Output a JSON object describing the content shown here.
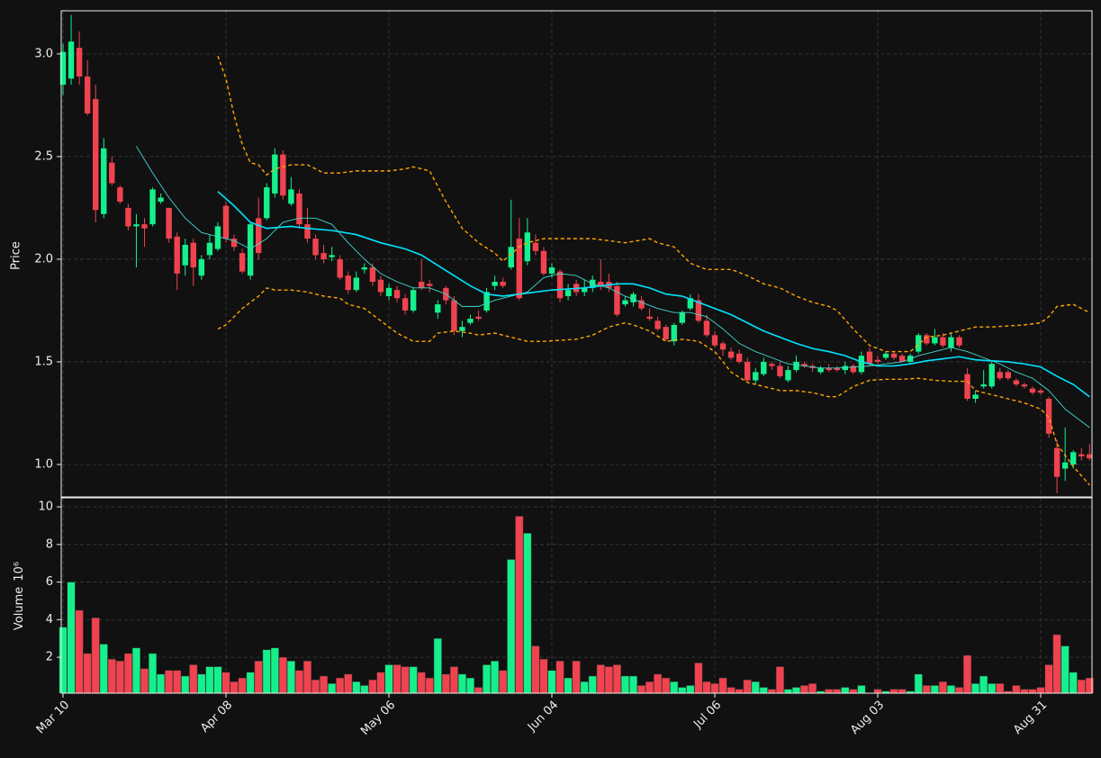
{
  "chart_data": {
    "type": "candlestick",
    "ylabel": "Price",
    "up_color": "#14f08c",
    "down_color": "#f0434f",
    "grid": true,
    "categories": [
      "Mar 10",
      null,
      null,
      null,
      null,
      null,
      null,
      null,
      null,
      null,
      null,
      null,
      null,
      null,
      null,
      null,
      null,
      null,
      null,
      null,
      "Apr 08",
      null,
      null,
      null,
      null,
      null,
      null,
      null,
      null,
      null,
      null,
      null,
      null,
      null,
      null,
      null,
      null,
      null,
      null,
      null,
      "May 06",
      null,
      null,
      null,
      null,
      null,
      null,
      null,
      null,
      null,
      null,
      null,
      null,
      null,
      null,
      null,
      null,
      null,
      null,
      null,
      "Jun 04",
      null,
      null,
      null,
      null,
      null,
      null,
      null,
      null,
      null,
      null,
      null,
      null,
      null,
      null,
      null,
      null,
      null,
      null,
      null,
      "Jul 06",
      null,
      null,
      null,
      null,
      null,
      null,
      null,
      null,
      null,
      null,
      null,
      null,
      null,
      null,
      null,
      null,
      null,
      null,
      null,
      "Aug 03",
      null,
      null,
      null,
      null,
      null,
      null,
      null,
      null,
      null,
      null,
      null,
      null,
      null,
      null,
      null,
      null,
      null,
      null,
      null,
      "Aug 31",
      null,
      null,
      null,
      null,
      null,
      null
    ],
    "open": [
      2.85,
      2.88,
      3.03,
      2.89,
      2.78,
      2.22,
      2.47,
      2.35,
      2.25,
      2.16,
      2.17,
      2.17,
      2.28,
      2.25,
      2.11,
      1.97,
      2.08,
      1.92,
      2.02,
      2.05,
      2.26,
      2.1,
      2.03,
      1.92,
      2.2,
      2.2,
      2.32,
      2.51,
      2.27,
      2.32,
      2.17,
      2.1,
      2.03,
      2.01,
      2.0,
      1.92,
      1.85,
      1.95,
      1.96,
      1.9,
      1.82,
      1.85,
      1.81,
      1.75,
      1.89,
      1.88,
      1.74,
      1.86,
      1.8,
      1.65,
      1.69,
      1.72,
      1.75,
      1.87,
      1.89,
      1.96,
      2.1,
      1.99,
      2.08,
      2.04,
      1.93,
      1.94,
      1.82,
      1.88,
      1.84,
      1.86,
      1.89,
      1.89,
      1.87,
      1.78,
      1.79,
      1.8,
      1.72,
      1.7,
      1.67,
      1.6,
      1.69,
      1.76,
      1.8,
      1.7,
      1.63,
      1.59,
      1.55,
      1.54,
      1.5,
      1.41,
      1.44,
      1.49,
      1.48,
      1.41,
      1.46,
      1.49,
      1.48,
      1.45,
      1.47,
      1.47,
      1.46,
      1.48,
      1.45,
      1.55,
      1.51,
      1.52,
      1.54,
      1.53,
      1.5,
      1.55,
      1.63,
      1.59,
      1.62,
      1.57,
      1.62,
      1.44,
      1.32,
      1.38,
      1.38,
      1.45,
      1.45,
      1.41,
      1.39,
      1.37,
      1.36,
      1.32,
      1.08,
      0.98,
      1.0,
      1.05,
      1.05
    ],
    "high": [
      3.05,
      3.19,
      3.11,
      2.97,
      2.85,
      2.59,
      2.5,
      2.36,
      2.27,
      2.22,
      2.2,
      2.35,
      2.32,
      2.25,
      2.13,
      2.1,
      2.1,
      2.02,
      2.12,
      2.18,
      2.28,
      2.12,
      2.05,
      2.18,
      2.3,
      2.37,
      2.54,
      2.53,
      2.4,
      2.34,
      2.25,
      2.12,
      2.07,
      2.06,
      2.02,
      1.94,
      1.94,
      1.98,
      1.98,
      1.92,
      1.88,
      1.87,
      1.83,
      1.86,
      2.0,
      1.9,
      1.8,
      1.87,
      1.82,
      1.7,
      1.73,
      1.75,
      1.86,
      1.92,
      1.91,
      2.29,
      2.2,
      2.2,
      2.12,
      2.06,
      1.98,
      1.95,
      1.88,
      1.9,
      1.9,
      1.92,
      2.0,
      1.93,
      1.89,
      1.82,
      1.84,
      1.82,
      1.76,
      1.72,
      1.68,
      1.69,
      1.75,
      1.83,
      1.83,
      1.73,
      1.65,
      1.6,
      1.57,
      1.56,
      1.52,
      1.47,
      1.52,
      1.5,
      1.5,
      1.48,
      1.53,
      1.5,
      1.49,
      1.48,
      1.49,
      1.48,
      1.5,
      1.49,
      1.55,
      1.57,
      1.53,
      1.55,
      1.55,
      1.54,
      1.54,
      1.64,
      1.64,
      1.66,
      1.64,
      1.64,
      1.63,
      1.47,
      1.36,
      1.46,
      1.5,
      1.47,
      1.46,
      1.42,
      1.4,
      1.38,
      1.37,
      1.33,
      1.12,
      1.18,
      1.07,
      1.08,
      1.1
    ],
    "low": [
      2.8,
      2.85,
      2.85,
      2.7,
      2.18,
      2.2,
      2.36,
      2.27,
      2.14,
      1.96,
      2.06,
      2.16,
      2.27,
      2.08,
      1.85,
      1.92,
      1.87,
      1.9,
      2.0,
      2.04,
      2.08,
      2.04,
      1.93,
      1.9,
      2.0,
      2.19,
      2.3,
      2.29,
      2.26,
      2.15,
      2.08,
      2.0,
      1.98,
      1.99,
      1.9,
      1.83,
      1.84,
      1.93,
      1.87,
      1.82,
      1.8,
      1.79,
      1.73,
      1.74,
      1.85,
      1.84,
      1.71,
      1.78,
      1.63,
      1.62,
      1.68,
      1.7,
      1.74,
      1.85,
      1.86,
      1.95,
      1.8,
      1.97,
      2.02,
      1.92,
      1.91,
      1.79,
      1.8,
      1.82,
      1.82,
      1.84,
      1.85,
      1.84,
      1.72,
      1.77,
      1.77,
      1.75,
      1.7,
      1.65,
      1.6,
      1.58,
      1.68,
      1.75,
      1.69,
      1.62,
      1.57,
      1.53,
      1.51,
      1.49,
      1.4,
      1.39,
      1.43,
      1.46,
      1.42,
      1.4,
      1.45,
      1.47,
      1.45,
      1.44,
      1.45,
      1.45,
      1.44,
      1.44,
      1.44,
      1.48,
      1.49,
      1.51,
      1.51,
      1.5,
      1.49,
      1.54,
      1.58,
      1.58,
      1.57,
      1.55,
      1.57,
      1.31,
      1.3,
      1.37,
      1.37,
      1.41,
      1.41,
      1.38,
      1.37,
      1.34,
      1.34,
      1.13,
      0.86,
      0.92,
      0.98,
      1.02,
      1.02
    ],
    "close": [
      3.01,
      3.06,
      2.89,
      2.71,
      2.24,
      2.54,
      2.37,
      2.28,
      2.16,
      2.17,
      2.15,
      2.34,
      2.3,
      2.1,
      1.93,
      2.07,
      1.96,
      2.0,
      2.08,
      2.16,
      2.1,
      2.06,
      1.94,
      2.17,
      2.03,
      2.35,
      2.51,
      2.31,
      2.34,
      2.17,
      2.1,
      2.02,
      2.0,
      2.02,
      1.91,
      1.85,
      1.91,
      1.96,
      1.89,
      1.84,
      1.86,
      1.81,
      1.75,
      1.85,
      1.86,
      1.87,
      1.78,
      1.8,
      1.65,
      1.67,
      1.71,
      1.71,
      1.84,
      1.89,
      1.87,
      2.06,
      1.81,
      2.13,
      2.04,
      1.93,
      1.96,
      1.81,
      1.85,
      1.84,
      1.86,
      1.9,
      1.87,
      1.86,
      1.73,
      1.8,
      1.83,
      1.76,
      1.71,
      1.66,
      1.61,
      1.68,
      1.74,
      1.81,
      1.7,
      1.63,
      1.58,
      1.56,
      1.52,
      1.5,
      1.41,
      1.45,
      1.5,
      1.48,
      1.43,
      1.46,
      1.5,
      1.48,
      1.47,
      1.47,
      1.46,
      1.46,
      1.48,
      1.45,
      1.53,
      1.49,
      1.5,
      1.54,
      1.52,
      1.5,
      1.53,
      1.63,
      1.59,
      1.62,
      1.58,
      1.62,
      1.58,
      1.32,
      1.34,
      1.39,
      1.49,
      1.42,
      1.42,
      1.39,
      1.38,
      1.35,
      1.35,
      1.15,
      0.94,
      1.01,
      1.06,
      1.04,
      1.03
    ],
    "ylim": [
      0.842,
      3.21
    ],
    "yticks": [
      {
        "value": 1,
        "label": "1.0"
      },
      1.5,
      {
        "value": 2,
        "label": "2.0"
      },
      2.5,
      {
        "value": 3,
        "label": "3.0"
      }
    ],
    "lines": [
      {
        "color": "#00e5ff",
        "width": 1.6,
        "dash": false,
        "x": [
          19,
          21,
          23,
          25,
          28,
          30,
          33,
          36,
          39,
          42,
          44,
          46,
          48,
          50,
          52,
          54,
          56,
          58,
          60,
          64,
          68,
          70,
          72,
          74,
          76,
          78,
          80,
          82,
          84,
          86,
          88,
          90,
          92,
          94,
          96,
          98,
          100,
          102,
          104,
          106,
          108,
          110,
          112,
          114,
          116,
          118,
          120,
          122,
          124,
          126
        ],
        "values": [
          2.33,
          2.26,
          2.18,
          2.15,
          2.16,
          2.15,
          2.14,
          2.12,
          2.08,
          2.05,
          2.02,
          1.97,
          1.92,
          1.87,
          1.83,
          1.82,
          1.83,
          1.84,
          1.85,
          1.86,
          1.88,
          1.88,
          1.86,
          1.83,
          1.82,
          1.79,
          1.76,
          1.73,
          1.69,
          1.65,
          1.62,
          1.59,
          1.565,
          1.55,
          1.53,
          1.5,
          1.48,
          1.48,
          1.49,
          1.505,
          1.515,
          1.525,
          1.51,
          1.505,
          1.5,
          1.49,
          1.475,
          1.43,
          1.39,
          1.33
        ]
      },
      {
        "color": "#40d8d0",
        "width": 0.9,
        "dash": false,
        "x": [
          9,
          11,
          13,
          15,
          17,
          19,
          21,
          23,
          25,
          27,
          29,
          31,
          33,
          35,
          37,
          39,
          41,
          43,
          45,
          47,
          49,
          51,
          53,
          55,
          57,
          59,
          61,
          63,
          65,
          67,
          69,
          71,
          73,
          75,
          77,
          79,
          81,
          83,
          85,
          87,
          89,
          91,
          93,
          95,
          97,
          99,
          101,
          103,
          105,
          107,
          109,
          111,
          113,
          115,
          117,
          119,
          121,
          123,
          125,
          126
        ],
        "values": [
          2.55,
          2.42,
          2.3,
          2.2,
          2.13,
          2.11,
          2.09,
          2.05,
          2.1,
          2.18,
          2.2,
          2.2,
          2.17,
          2.08,
          2.0,
          1.93,
          1.89,
          1.86,
          1.86,
          1.83,
          1.77,
          1.77,
          1.8,
          1.82,
          1.84,
          1.91,
          1.93,
          1.92,
          1.88,
          1.86,
          1.82,
          1.79,
          1.76,
          1.74,
          1.74,
          1.72,
          1.66,
          1.59,
          1.55,
          1.52,
          1.49,
          1.48,
          1.47,
          1.47,
          1.475,
          1.48,
          1.49,
          1.5,
          1.53,
          1.55,
          1.57,
          1.55,
          1.52,
          1.49,
          1.45,
          1.42,
          1.36,
          1.27,
          1.21,
          1.18
        ]
      },
      {
        "color": "#ffa500",
        "width": 1.4,
        "dash": true,
        "x": [
          19,
          20,
          21,
          22,
          23,
          24,
          25,
          26,
          27,
          28,
          30,
          32,
          34,
          36,
          40,
          42,
          43,
          45,
          47,
          49,
          51,
          53,
          54,
          56,
          57,
          59,
          62,
          65,
          67,
          69,
          72,
          73,
          75,
          77,
          79,
          82,
          84,
          86,
          88,
          90,
          92,
          94,
          95,
          97,
          99,
          101,
          104,
          106,
          108,
          110,
          112,
          114,
          118,
          120,
          121,
          122,
          124,
          126
        ],
        "values": [
          2.99,
          2.88,
          2.7,
          2.56,
          2.47,
          2.46,
          2.41,
          2.44,
          2.45,
          2.46,
          2.46,
          2.42,
          2.42,
          2.43,
          2.43,
          2.44,
          2.45,
          2.43,
          2.28,
          2.15,
          2.08,
          2.03,
          1.99,
          2.06,
          2.08,
          2.1,
          2.1,
          2.1,
          2.09,
          2.08,
          2.1,
          2.08,
          2.06,
          1.98,
          1.95,
          1.95,
          1.92,
          1.88,
          1.86,
          1.82,
          1.79,
          1.77,
          1.75,
          1.66,
          1.58,
          1.55,
          1.55,
          1.62,
          1.63,
          1.65,
          1.67,
          1.67,
          1.68,
          1.69,
          1.72,
          1.77,
          1.78,
          1.74
        ]
      },
      {
        "color": "#ffa500",
        "width": 1.4,
        "dash": true,
        "x": [
          19,
          20,
          22,
          24,
          25,
          26,
          28,
          30,
          32,
          34,
          35,
          37,
          39,
          41,
          43,
          45,
          46,
          48,
          50,
          51,
          53,
          55,
          57,
          59,
          63,
          65,
          67,
          69,
          70,
          72,
          74,
          76,
          78,
          80,
          82,
          84,
          86,
          88,
          90,
          92,
          94,
          95,
          97,
          99,
          101,
          103,
          105,
          107,
          109,
          111,
          112,
          114,
          116,
          118,
          120,
          121,
          122,
          124,
          126
        ],
        "values": [
          1.66,
          1.68,
          1.76,
          1.82,
          1.86,
          1.85,
          1.85,
          1.84,
          1.82,
          1.81,
          1.78,
          1.76,
          1.7,
          1.64,
          1.6,
          1.6,
          1.64,
          1.65,
          1.64,
          1.63,
          1.64,
          1.62,
          1.6,
          1.6,
          1.61,
          1.63,
          1.67,
          1.69,
          1.68,
          1.65,
          1.6,
          1.61,
          1.6,
          1.55,
          1.45,
          1.4,
          1.38,
          1.36,
          1.36,
          1.35,
          1.33,
          1.33,
          1.38,
          1.41,
          1.415,
          1.415,
          1.42,
          1.41,
          1.405,
          1.405,
          1.36,
          1.34,
          1.32,
          1.3,
          1.27,
          1.23,
          1.1,
          0.99,
          0.9
        ]
      }
    ],
    "volume": {
      "ylabel": "Volume",
      "unit": "10⁶",
      "ylim": [
        0.09,
        10.48
      ],
      "yticks": [
        2,
        4,
        6,
        8,
        10
      ],
      "values": [
        3.6,
        6.0,
        4.5,
        2.2,
        4.1,
        2.7,
        1.9,
        1.8,
        2.2,
        2.5,
        1.4,
        2.2,
        1.1,
        1.3,
        1.3,
        1.0,
        1.6,
        1.1,
        1.5,
        1.5,
        1.2,
        0.7,
        0.9,
        1.2,
        1.8,
        2.4,
        2.5,
        2.0,
        1.8,
        1.3,
        1.8,
        0.8,
        1.0,
        0.6,
        0.9,
        1.1,
        0.7,
        0.5,
        0.8,
        1.2,
        1.6,
        1.6,
        1.5,
        1.5,
        1.2,
        0.9,
        3.0,
        1.1,
        1.5,
        1.1,
        0.9,
        0.4,
        1.6,
        1.8,
        1.3,
        7.2,
        9.5,
        8.6,
        2.6,
        1.9,
        1.3,
        1.8,
        0.9,
        1.8,
        0.7,
        1.0,
        1.6,
        1.5,
        1.6,
        1.0,
        1.0,
        0.5,
        0.7,
        1.1,
        0.9,
        0.7,
        0.4,
        0.5,
        1.7,
        0.7,
        0.6,
        0.9,
        0.4,
        0.3,
        0.8,
        0.7,
        0.4,
        0.3,
        1.5,
        0.3,
        0.4,
        0.5,
        0.6,
        0.2,
        0.3,
        0.3,
        0.4,
        0.3,
        0.5,
        0.1,
        0.3,
        0.2,
        0.3,
        0.3,
        0.2,
        1.1,
        0.5,
        0.5,
        0.7,
        0.5,
        0.4,
        2.1,
        0.6,
        1.0,
        0.6,
        0.6,
        0.2,
        0.5,
        0.3,
        0.3,
        0.4,
        1.6,
        3.2,
        2.6,
        1.2,
        0.8,
        0.9
      ]
    }
  }
}
